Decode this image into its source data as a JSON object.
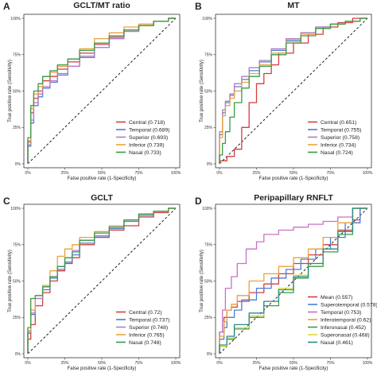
{
  "figure": {
    "panels": [
      {
        "letter": "A",
        "title": "GCLT/MT ratio"
      },
      {
        "letter": "B",
        "title": "MT"
      },
      {
        "letter": "C",
        "title": "GCLT"
      },
      {
        "letter": "D",
        "title": "Peripapillary RNFLT"
      }
    ]
  },
  "chart_data": [
    {
      "type": "line",
      "panel": "A",
      "title": "GCLT/MT ratio",
      "xlabel": "False positive rate (1-Specificity)",
      "ylabel": "True positive rate (Sensitivity)",
      "xlim": [
        0,
        100
      ],
      "ylim": [
        0,
        100
      ],
      "x_ticks": [
        "0%",
        "25%",
        "50%",
        "75%",
        "100%"
      ],
      "y_ticks": [
        "0%",
        "25%",
        "50%",
        "75%",
        "100%"
      ],
      "reference_line": "diagonal dashed",
      "legend_position": "bottom-right",
      "series": [
        {
          "name": "Central (0.718)",
          "color": "#d73c3c",
          "x": [
            0,
            2,
            4,
            7,
            10,
            15,
            20,
            27,
            35,
            45,
            55,
            65,
            75,
            85,
            95,
            100
          ],
          "y": [
            0,
            15,
            35,
            45,
            50,
            57,
            60,
            65,
            70,
            76,
            82,
            87,
            92,
            95,
            98,
            100
          ]
        },
        {
          "name": "Temporal (0.689)",
          "color": "#4a7fd4",
          "x": [
            0,
            2,
            4,
            7,
            10,
            15,
            20,
            27,
            35,
            45,
            55,
            65,
            75,
            85,
            95,
            100
          ],
          "y": [
            0,
            12,
            28,
            40,
            46,
            52,
            56,
            61,
            67,
            73,
            80,
            86,
            91,
            95,
            98,
            100
          ]
        },
        {
          "name": "Superior (0.693)",
          "color": "#b57ac4",
          "x": [
            0,
            2,
            4,
            7,
            10,
            15,
            20,
            27,
            35,
            45,
            55,
            65,
            75,
            85,
            95,
            100
          ],
          "y": [
            0,
            13,
            30,
            42,
            48,
            53,
            57,
            62,
            67,
            74,
            80,
            86,
            91,
            95,
            98,
            100
          ]
        },
        {
          "name": "Inferior (0.739)",
          "color": "#e8a33c",
          "x": [
            0,
            2,
            4,
            7,
            10,
            15,
            20,
            27,
            35,
            45,
            55,
            65,
            75,
            85,
            95,
            100
          ],
          "y": [
            0,
            16,
            38,
            48,
            53,
            60,
            63,
            67,
            72,
            79,
            86,
            90,
            94,
            96,
            98,
            100
          ]
        },
        {
          "name": "Nasal (0.733)",
          "color": "#3a9a4a",
          "x": [
            0,
            2,
            4,
            7,
            10,
            15,
            20,
            27,
            35,
            45,
            55,
            65,
            75,
            85,
            95,
            100
          ],
          "y": [
            0,
            18,
            40,
            50,
            55,
            60,
            64,
            68,
            72,
            78,
            83,
            88,
            92,
            95,
            98,
            100
          ]
        }
      ]
    },
    {
      "type": "line",
      "panel": "B",
      "title": "MT",
      "xlabel": "False positive rate (1-Specificity)",
      "ylabel": "True positive rate (Sensitivity)",
      "xlim": [
        0,
        100
      ],
      "ylim": [
        0,
        100
      ],
      "x_ticks": [
        "0%",
        "25%",
        "50%",
        "75%",
        "100%"
      ],
      "y_ticks": [
        "0%",
        "25%",
        "50%",
        "75%",
        "100%"
      ],
      "reference_line": "diagonal dashed",
      "legend_position": "bottom-right",
      "series": [
        {
          "name": "Central (0.651)",
          "color": "#d73c3c",
          "x": [
            0,
            5,
            10,
            15,
            20,
            25,
            30,
            35,
            40,
            50,
            60,
            70,
            80,
            90,
            100
          ],
          "y": [
            0,
            2,
            5,
            10,
            25,
            42,
            55,
            62,
            68,
            76,
            83,
            89,
            94,
            97,
            100
          ]
        },
        {
          "name": "Temporal (0.755)",
          "color": "#4a7fd4",
          "x": [
            0,
            2,
            4,
            7,
            10,
            15,
            20,
            27,
            35,
            45,
            55,
            65,
            75,
            85,
            95,
            100
          ],
          "y": [
            0,
            20,
            35,
            42,
            47,
            53,
            58,
            64,
            70,
            78,
            85,
            90,
            94,
            96,
            98,
            100
          ]
        },
        {
          "name": "Superior (0.758)",
          "color": "#b57ac4",
          "x": [
            0,
            2,
            4,
            7,
            10,
            15,
            20,
            27,
            35,
            45,
            55,
            65,
            75,
            85,
            95,
            100
          ],
          "y": [
            0,
            22,
            37,
            43,
            48,
            55,
            60,
            66,
            71,
            79,
            86,
            90,
            94,
            96,
            98,
            100
          ]
        },
        {
          "name": "Inferior (0.734)",
          "color": "#e8a33c",
          "x": [
            0,
            2,
            4,
            7,
            10,
            15,
            20,
            27,
            35,
            45,
            55,
            65,
            75,
            85,
            95,
            100
          ],
          "y": [
            0,
            18,
            33,
            40,
            45,
            50,
            56,
            62,
            68,
            76,
            84,
            89,
            93,
            96,
            98,
            100
          ]
        },
        {
          "name": "Nasal (0.724)",
          "color": "#3a9a4a",
          "x": [
            0,
            2,
            4,
            7,
            10,
            15,
            20,
            27,
            35,
            45,
            55,
            65,
            75,
            85,
            95,
            100
          ],
          "y": [
            0,
            6,
            14,
            22,
            32,
            42,
            52,
            60,
            67,
            75,
            83,
            88,
            93,
            96,
            98,
            100
          ]
        }
      ]
    },
    {
      "type": "line",
      "panel": "C",
      "title": "GCLT",
      "xlabel": "False positive rate (1-Specificity)",
      "ylabel": "True positive rate (Sensitivity)",
      "xlim": [
        0,
        100
      ],
      "ylim": [
        0,
        100
      ],
      "x_ticks": [
        "0%",
        "25%",
        "50%",
        "75%",
        "100%"
      ],
      "y_ticks": [
        "0%",
        "25%",
        "50%",
        "75%",
        "100%"
      ],
      "reference_line": "diagonal dashed",
      "legend_position": "bottom-right",
      "series": [
        {
          "name": "Central (0.72)",
          "color": "#d73c3c",
          "x": [
            0,
            2,
            5,
            10,
            15,
            20,
            25,
            30,
            35,
            45,
            55,
            65,
            75,
            85,
            95,
            100
          ],
          "y": [
            0,
            10,
            20,
            33,
            42,
            50,
            57,
            62,
            66,
            75,
            80,
            85,
            88,
            94,
            97,
            100
          ]
        },
        {
          "name": "Temporal (0.737)",
          "color": "#4a7fd4",
          "x": [
            0,
            2,
            5,
            10,
            15,
            20,
            25,
            30,
            35,
            45,
            55,
            65,
            75,
            85,
            95,
            100
          ],
          "y": [
            0,
            14,
            27,
            38,
            44,
            52,
            58,
            63,
            68,
            76,
            81,
            86,
            91,
            95,
            98,
            100
          ]
        },
        {
          "name": "Superior (0.748)",
          "color": "#b57ac4",
          "x": [
            0,
            2,
            5,
            10,
            15,
            20,
            25,
            30,
            35,
            45,
            55,
            65,
            75,
            85,
            95,
            100
          ],
          "y": [
            0,
            15,
            28,
            38,
            46,
            53,
            60,
            66,
            71,
            78,
            83,
            87,
            92,
            96,
            98,
            100
          ]
        },
        {
          "name": "Inferior (0.765)",
          "color": "#e8a33c",
          "x": [
            0,
            2,
            5,
            10,
            15,
            20,
            25,
            30,
            35,
            45,
            55,
            65,
            75,
            85,
            95,
            100
          ],
          "y": [
            0,
            16,
            30,
            40,
            47,
            57,
            67,
            72,
            75,
            80,
            84,
            88,
            92,
            96,
            98,
            100
          ]
        },
        {
          "name": "Nasal (0.748)",
          "color": "#3a9a4a",
          "x": [
            0,
            2,
            5,
            10,
            15,
            20,
            25,
            30,
            35,
            45,
            55,
            65,
            75,
            85,
            95,
            100
          ],
          "y": [
            0,
            18,
            38,
            40,
            46,
            53,
            60,
            66,
            70,
            78,
            83,
            87,
            92,
            96,
            98,
            100
          ]
        }
      ]
    },
    {
      "type": "line",
      "panel": "D",
      "title": "Peripapillary RNFLT",
      "xlabel": "False positive rate (1-Specificity)",
      "ylabel": "True positive rate (Sensitivity)",
      "xlim": [
        0,
        100
      ],
      "ylim": [
        0,
        100
      ],
      "x_ticks": [
        "0%",
        "25%",
        "50%",
        "75%",
        "100%"
      ],
      "y_ticks": [
        "0%",
        "25%",
        "50%",
        "75%",
        "100%"
      ],
      "reference_line": "diagonal dashed",
      "legend_position": "bottom-right",
      "series": [
        {
          "name": "Mean (0.557)",
          "color": "#d73c3c",
          "x": [
            0,
            3,
            5,
            8,
            12,
            20,
            30,
            40,
            50,
            60,
            70,
            80,
            90,
            95,
            100
          ],
          "y": [
            0,
            15,
            25,
            30,
            32,
            36,
            42,
            48,
            55,
            62,
            68,
            75,
            85,
            92,
            100
          ]
        },
        {
          "name": "Superotemporal (0.578)",
          "color": "#4a7fd4",
          "x": [
            0,
            3,
            5,
            10,
            15,
            25,
            35,
            45,
            55,
            65,
            75,
            85,
            95,
            100
          ],
          "y": [
            0,
            10,
            18,
            25,
            30,
            37,
            45,
            52,
            58,
            65,
            72,
            80,
            90,
            100
          ]
        },
        {
          "name": "Temporal (0.753)",
          "color": "#c970c4",
          "x": [
            0,
            2,
            4,
            8,
            12,
            18,
            25,
            30,
            40,
            50,
            60,
            70,
            80,
            90,
            100
          ],
          "y": [
            0,
            15,
            30,
            45,
            53,
            62,
            72,
            77,
            82,
            85,
            87,
            89,
            91,
            94,
            100
          ]
        },
        {
          "name": "Inferotemporal (0.62)",
          "color": "#e8a33c",
          "x": [
            0,
            3,
            5,
            8,
            12,
            20,
            30,
            40,
            50,
            60,
            70,
            80,
            90,
            100
          ],
          "y": [
            0,
            12,
            22,
            30,
            34,
            40,
            50,
            55,
            60,
            66,
            72,
            80,
            90,
            100
          ]
        },
        {
          "name": "Inferonasal (0.452)",
          "color": "#3a9a4a",
          "x": [
            0,
            5,
            10,
            20,
            30,
            40,
            50,
            60,
            70,
            80,
            90,
            100
          ],
          "y": [
            0,
            5,
            10,
            17,
            25,
            33,
            42,
            52,
            60,
            70,
            82,
            100
          ]
        },
        {
          "name": "Superonasal (0.468)",
          "color": "#d9d93a",
          "x": [
            0,
            5,
            10,
            20,
            30,
            40,
            50,
            60,
            70,
            80,
            90,
            100
          ],
          "y": [
            0,
            5,
            11,
            18,
            26,
            36,
            45,
            54,
            62,
            72,
            84,
            100
          ]
        },
        {
          "name": "Nasal (0.461)",
          "color": "#2a8a8a",
          "x": [
            0,
            5,
            10,
            20,
            30,
            40,
            50,
            60,
            70,
            80,
            90,
            100
          ],
          "y": [
            0,
            6,
            12,
            20,
            28,
            36,
            44,
            53,
            62,
            72,
            84,
            100
          ]
        }
      ]
    }
  ]
}
